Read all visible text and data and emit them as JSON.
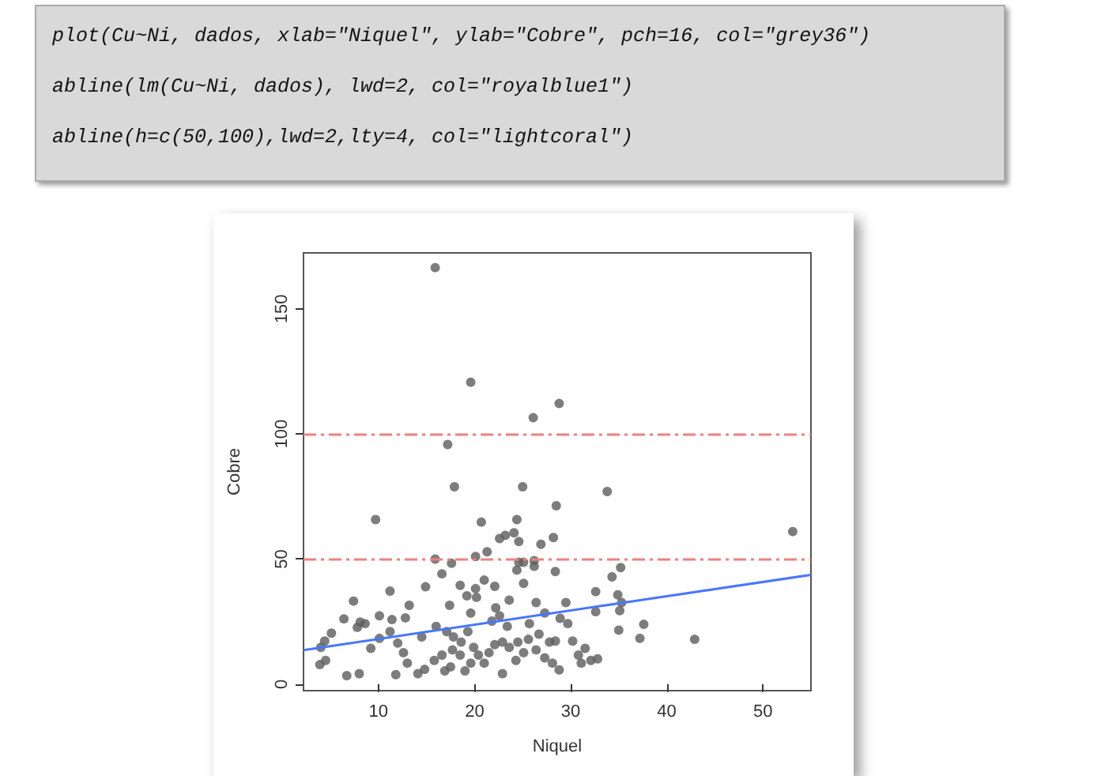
{
  "chart_data": {
    "type": "scatter",
    "xlabel": "Niquel",
    "ylabel": "Cobre",
    "annotations": [
      "plot(Cu~Ni, dados, xlab=\"Niquel\", ylab=\"Cobre\", pch=16, col=\"grey36\")",
      "abline(lm(Cu~Ni, dados), lwd=2, col=\"royalblue1\")",
      "abline(h=c(50,100),lwd=2,lty=4, col=\"lightcoral\")"
    ],
    "series": [
      {
        "color": "#5c5c5c",
        "marker": "circle",
        "x": [
          15.9,
          19.6,
          28.8,
          26.1,
          17.2,
          17.9,
          25.0,
          33.8,
          28.5,
          9.7,
          53.1,
          20.7,
          24.4,
          22.6,
          23.2,
          24.1,
          24.6,
          28.2,
          26.9,
          15.9,
          17.6,
          20.1,
          21.3,
          24.4,
          24.6,
          25.1,
          26.2,
          26.2,
          28.4,
          25.1,
          16.6,
          14.9,
          18.5,
          19.2,
          20.1,
          20.2,
          21.0,
          22.1,
          11.2,
          13.2,
          7.4,
          34.3,
          35.2,
          32.6,
          34.9,
          35.3,
          35.1,
          32.6,
          37.6,
          35.0,
          37.2,
          42.9,
          12.8,
          11.4,
          10.1,
          6.4,
          8.1,
          8.6,
          7.8,
          5.1,
          4.4,
          4.0,
          3.9,
          4.5,
          6.7,
          8.0,
          9.2,
          10.1,
          11.2,
          12.0,
          12.6,
          11.8,
          13.0,
          14.1,
          14.8,
          15.8,
          16.6,
          14.5,
          16.0,
          17.1,
          17.8,
          17.7,
          18.5,
          16.9,
          17.5,
          18.6,
          19.3,
          19.6,
          17.4,
          19.9,
          20.4,
          19.6,
          19.0,
          21.0,
          21.5,
          22.1,
          21.8,
          22.2,
          22.6,
          23.4,
          23.6,
          22.9,
          23.6,
          24.5,
          22.9,
          24.3,
          25.1,
          25.7,
          26.4,
          27.3,
          25.6,
          26.7,
          27.8,
          26.4,
          27.3,
          28.1,
          28.8,
          28.9,
          29.7,
          29.5,
          30.2,
          30.8,
          31.5,
          31.1,
          32.1,
          32.8,
          28.4
        ],
        "values": [
          166.5,
          120.7,
          112.2,
          106.5,
          95.8,
          78.9,
          78.9,
          77.0,
          71.3,
          65.8,
          61.0,
          64.8,
          65.8,
          58.2,
          59.5,
          60.5,
          57.0,
          58.6,
          55.9,
          50.0,
          48.3,
          51.0,
          52.9,
          45.6,
          48.7,
          48.7,
          49.4,
          47.1,
          45.0,
          40.3,
          44.1,
          38.9,
          39.5,
          35.3,
          38.2,
          34.7,
          41.6,
          39.1,
          37.2,
          31.5,
          33.2,
          42.9,
          46.6,
          37.0,
          35.7,
          32.6,
          29.4,
          29.0,
          23.9,
          21.6,
          18.3,
          17.9,
          26.5,
          25.8,
          27.3,
          26.1,
          24.8,
          24.2,
          22.7,
          20.4,
          17.2,
          14.7,
          7.8,
          9.5,
          3.4,
          4.2,
          14.3,
          18.3,
          21.0,
          16.4,
          12.6,
          3.8,
          8.4,
          4.2,
          5.9,
          9.5,
          11.6,
          18.9,
          23.1,
          21.0,
          18.9,
          13.7,
          11.6,
          5.3,
          6.9,
          16.8,
          21.0,
          28.4,
          31.5,
          14.7,
          11.6,
          8.4,
          5.3,
          8.4,
          12.6,
          15.8,
          25.2,
          30.5,
          27.3,
          23.1,
          33.6,
          16.8,
          14.7,
          16.8,
          4.2,
          9.5,
          12.6,
          24.2,
          32.6,
          28.4,
          17.9,
          20.0,
          16.8,
          13.7,
          10.5,
          8.4,
          5.7,
          26.3,
          24.2,
          32.6,
          17.2,
          11.6,
          14.3,
          8.4,
          9.5,
          10.1,
          17.2
        ]
      },
      {
        "type": "line",
        "color": "#4876ff",
        "line_style": "solid",
        "x": [
          2.2,
          55.0
        ],
        "values": [
          13.6,
          43.7
        ]
      }
    ],
    "xlim": [
      2.2,
      55.0
    ],
    "ylim": [
      -2.6,
      172.4
    ],
    "xticks": [
      10,
      20,
      30,
      40,
      50
    ],
    "yticks": [
      0,
      50,
      100,
      150
    ],
    "ref_lines": [
      {
        "axis": "y",
        "value": 50,
        "color": "#f08080",
        "line_style": "dashed"
      },
      {
        "axis": "y",
        "value": 100,
        "color": "#f08080",
        "line_style": "dashed"
      }
    ],
    "grid": false
  }
}
